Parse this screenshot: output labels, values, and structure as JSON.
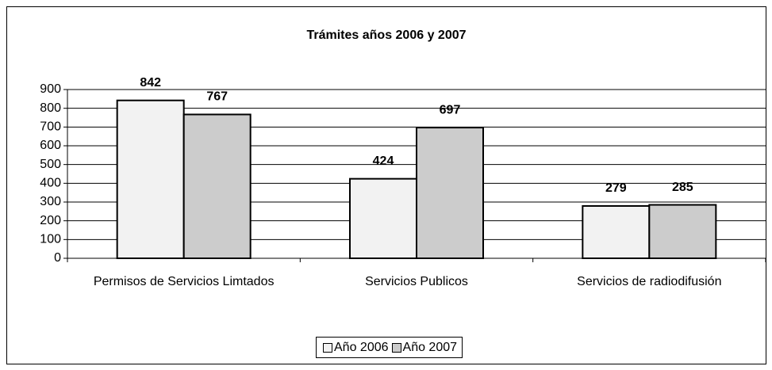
{
  "chart_data": {
    "type": "bar",
    "title": "Trámites años 2006 y 2007",
    "categories": [
      "Permisos de Servicios Limtados",
      "Servicios Publicos",
      "Servicios de radiodifusión"
    ],
    "series": [
      {
        "name": "Año 2006",
        "color": "#f2f2f2",
        "values": [
          842,
          424,
          279
        ]
      },
      {
        "name": "Año 2007",
        "color": "#cccccc",
        "values": [
          767,
          697,
          285
        ]
      }
    ],
    "ylim": [
      0,
      900
    ],
    "yticks": [
      0,
      100,
      200,
      300,
      400,
      500,
      600,
      700,
      800,
      900
    ],
    "grid": true,
    "legend": "bottom"
  }
}
